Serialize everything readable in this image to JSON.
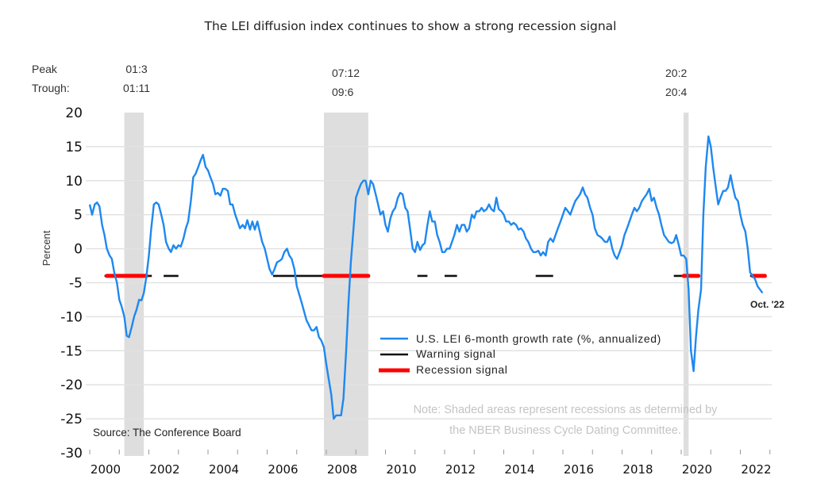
{
  "chart_data": {
    "type": "line",
    "title": "The LEI diffusion index continues to show a strong recession signal",
    "xlabel": "",
    "ylabel": "Percent",
    "ylim": [
      -30,
      20
    ],
    "yticks": [
      20,
      15,
      10,
      5,
      0,
      -5,
      -10,
      -15,
      -20,
      -25,
      -30
    ],
    "xlim": [
      2000,
      2023
    ],
    "xticks": [
      "2000",
      "2002",
      "2004",
      "2006",
      "2008",
      "2010",
      "2012",
      "2014",
      "2016",
      "2018",
      "2020",
      "2022"
    ],
    "grid": true,
    "legend_placement": "center-bottom",
    "peak_label": "Peak",
    "trough_label": "Trough:",
    "recessions": [
      {
        "peak": "01:3",
        "trough": "01:11",
        "start": 2001.17,
        "end": 2001.83
      },
      {
        "peak": "07:12",
        "trough": "09:6",
        "start": 2007.92,
        "end": 2009.42
      },
      {
        "peak": "20:2",
        "trough": "20:4",
        "start": 2020.08,
        "end": 2020.25
      }
    ],
    "series": [
      {
        "name": "U.S. LEI 6-month growth rate (%, annualized)",
        "color": "#1e88f0",
        "points": [
          [
            2000.0,
            6.5
          ],
          [
            2000.08,
            5.0
          ],
          [
            2000.17,
            6.5
          ],
          [
            2000.25,
            6.8
          ],
          [
            2000.33,
            6.2
          ],
          [
            2000.42,
            3.5
          ],
          [
            2000.5,
            2.0
          ],
          [
            2000.58,
            0.0
          ],
          [
            2000.67,
            -1.0
          ],
          [
            2000.75,
            -1.5
          ],
          [
            2000.83,
            -3.5
          ],
          [
            2000.92,
            -5.0
          ],
          [
            2001.0,
            -7.5
          ],
          [
            2001.08,
            -8.5
          ],
          [
            2001.17,
            -10.0
          ],
          [
            2001.25,
            -12.8
          ],
          [
            2001.33,
            -13.0
          ],
          [
            2001.42,
            -11.5
          ],
          [
            2001.5,
            -10.0
          ],
          [
            2001.58,
            -9.0
          ],
          [
            2001.67,
            -7.5
          ],
          [
            2001.75,
            -7.6
          ],
          [
            2001.83,
            -6.5
          ],
          [
            2001.92,
            -4.0
          ],
          [
            2002.0,
            -1.0
          ],
          [
            2002.08,
            3.0
          ],
          [
            2002.17,
            6.5
          ],
          [
            2002.25,
            6.8
          ],
          [
            2002.33,
            6.5
          ],
          [
            2002.42,
            5.0
          ],
          [
            2002.5,
            3.5
          ],
          [
            2002.58,
            1.0
          ],
          [
            2002.67,
            0.0
          ],
          [
            2002.75,
            -0.5
          ],
          [
            2002.83,
            0.5
          ],
          [
            2002.92,
            0.0
          ],
          [
            2003.0,
            0.5
          ],
          [
            2003.08,
            0.3
          ],
          [
            2003.17,
            1.5
          ],
          [
            2003.25,
            3.0
          ],
          [
            2003.33,
            4.0
          ],
          [
            2003.42,
            7.0
          ],
          [
            2003.5,
            10.5
          ],
          [
            2003.58,
            11.0
          ],
          [
            2003.67,
            12.0
          ],
          [
            2003.75,
            13.0
          ],
          [
            2003.83,
            13.8
          ],
          [
            2003.92,
            12.0
          ],
          [
            2004.0,
            11.5
          ],
          [
            2004.08,
            10.5
          ],
          [
            2004.17,
            9.5
          ],
          [
            2004.25,
            8.0
          ],
          [
            2004.33,
            8.2
          ],
          [
            2004.42,
            7.8
          ],
          [
            2004.5,
            8.8
          ],
          [
            2004.58,
            8.8
          ],
          [
            2004.67,
            8.5
          ],
          [
            2004.75,
            6.5
          ],
          [
            2004.83,
            6.5
          ],
          [
            2004.92,
            5.0
          ],
          [
            2005.0,
            4.0
          ],
          [
            2005.08,
            3.0
          ],
          [
            2005.17,
            3.5
          ],
          [
            2005.25,
            3.0
          ],
          [
            2005.33,
            4.2
          ],
          [
            2005.42,
            2.8
          ],
          [
            2005.5,
            4.0
          ],
          [
            2005.58,
            2.8
          ],
          [
            2005.67,
            4.0
          ],
          [
            2005.75,
            2.5
          ],
          [
            2005.83,
            1.0
          ],
          [
            2005.92,
            0.0
          ],
          [
            2006.0,
            -1.5
          ],
          [
            2006.08,
            -3.0
          ],
          [
            2006.17,
            -3.8
          ],
          [
            2006.25,
            -3.0
          ],
          [
            2006.33,
            -2.0
          ],
          [
            2006.42,
            -1.8
          ],
          [
            2006.5,
            -1.5
          ],
          [
            2006.58,
            -0.5
          ],
          [
            2006.67,
            0.0
          ],
          [
            2006.75,
            -1.0
          ],
          [
            2006.83,
            -1.5
          ],
          [
            2006.92,
            -3.0
          ],
          [
            2007.0,
            -5.5
          ],
          [
            2007.17,
            -8.0
          ],
          [
            2007.33,
            -10.5
          ],
          [
            2007.5,
            -12.0
          ],
          [
            2007.58,
            -12.0
          ],
          [
            2007.67,
            -11.5
          ],
          [
            2007.75,
            -13.0
          ],
          [
            2007.83,
            -13.5
          ],
          [
            2007.92,
            -14.5
          ],
          [
            2008.0,
            -17.0
          ],
          [
            2008.17,
            -21.5
          ],
          [
            2008.25,
            -25.0
          ],
          [
            2008.33,
            -24.5
          ],
          [
            2008.5,
            -24.5
          ],
          [
            2008.58,
            -22.0
          ],
          [
            2008.67,
            -15.0
          ],
          [
            2008.75,
            -8.0
          ],
          [
            2008.83,
            -2.0
          ],
          [
            2008.92,
            3.0
          ],
          [
            2009.0,
            7.5
          ],
          [
            2009.08,
            8.5
          ],
          [
            2009.17,
            9.5
          ],
          [
            2009.25,
            10.0
          ],
          [
            2009.33,
            10.0
          ],
          [
            2009.42,
            8.0
          ],
          [
            2009.5,
            10.0
          ],
          [
            2009.58,
            9.5
          ],
          [
            2009.67,
            8.0
          ],
          [
            2009.75,
            6.5
          ],
          [
            2009.83,
            5.0
          ],
          [
            2009.92,
            5.5
          ],
          [
            2010.0,
            3.5
          ],
          [
            2010.08,
            2.5
          ],
          [
            2010.17,
            4.5
          ],
          [
            2010.25,
            5.5
          ],
          [
            2010.33,
            6.0
          ],
          [
            2010.42,
            7.5
          ],
          [
            2010.5,
            8.2
          ],
          [
            2010.58,
            8.0
          ],
          [
            2010.67,
            6.0
          ],
          [
            2010.75,
            5.5
          ],
          [
            2010.83,
            3.0
          ],
          [
            2010.92,
            0.0
          ],
          [
            2011.0,
            -0.5
          ],
          [
            2011.08,
            1.0
          ],
          [
            2011.17,
            -0.2
          ],
          [
            2011.25,
            0.5
          ],
          [
            2011.33,
            0.8
          ],
          [
            2011.42,
            3.5
          ],
          [
            2011.5,
            5.5
          ],
          [
            2011.58,
            4.0
          ],
          [
            2011.67,
            4.0
          ],
          [
            2011.75,
            2.0
          ],
          [
            2011.83,
            1.0
          ],
          [
            2011.92,
            -0.5
          ],
          [
            2012.0,
            -0.5
          ],
          [
            2012.08,
            0.0
          ],
          [
            2012.17,
            0.0
          ],
          [
            2012.25,
            1.0
          ],
          [
            2012.33,
            2.0
          ],
          [
            2012.42,
            3.5
          ],
          [
            2012.5,
            2.5
          ],
          [
            2012.58,
            3.5
          ],
          [
            2012.67,
            3.5
          ],
          [
            2012.75,
            2.5
          ],
          [
            2012.83,
            3.0
          ],
          [
            2012.92,
            5.0
          ],
          [
            2013.0,
            4.5
          ],
          [
            2013.08,
            5.5
          ],
          [
            2013.17,
            5.5
          ],
          [
            2013.25,
            6.0
          ],
          [
            2013.33,
            5.5
          ],
          [
            2013.42,
            5.8
          ],
          [
            2013.5,
            6.5
          ],
          [
            2013.58,
            5.8
          ],
          [
            2013.67,
            5.5
          ],
          [
            2013.75,
            7.5
          ],
          [
            2013.83,
            5.8
          ],
          [
            2013.92,
            5.5
          ],
          [
            2014.0,
            5.0
          ],
          [
            2014.08,
            4.0
          ],
          [
            2014.17,
            4.0
          ],
          [
            2014.25,
            3.5
          ],
          [
            2014.33,
            3.8
          ],
          [
            2014.42,
            3.5
          ],
          [
            2014.5,
            2.8
          ],
          [
            2014.58,
            3.0
          ],
          [
            2014.67,
            2.5
          ],
          [
            2014.75,
            1.5
          ],
          [
            2014.83,
            1.0
          ],
          [
            2014.92,
            0.0
          ],
          [
            2015.0,
            -0.5
          ],
          [
            2015.08,
            -0.5
          ],
          [
            2015.17,
            -0.3
          ],
          [
            2015.25,
            -1.0
          ],
          [
            2015.33,
            -0.5
          ],
          [
            2015.42,
            -1.0
          ],
          [
            2015.5,
            1.0
          ],
          [
            2015.58,
            1.5
          ],
          [
            2015.67,
            1.0
          ],
          [
            2015.75,
            2.0
          ],
          [
            2015.83,
            3.0
          ],
          [
            2015.92,
            4.0
          ],
          [
            2016.0,
            5.0
          ],
          [
            2016.08,
            6.0
          ],
          [
            2016.17,
            5.5
          ],
          [
            2016.25,
            5.0
          ],
          [
            2016.33,
            6.0
          ],
          [
            2016.42,
            7.0
          ],
          [
            2016.5,
            7.5
          ],
          [
            2016.58,
            8.0
          ],
          [
            2016.67,
            9.0
          ],
          [
            2016.75,
            8.0
          ],
          [
            2016.83,
            7.5
          ],
          [
            2016.92,
            6.0
          ],
          [
            2017.0,
            5.0
          ],
          [
            2017.08,
            3.0
          ],
          [
            2017.17,
            2.0
          ],
          [
            2017.25,
            1.8
          ],
          [
            2017.33,
            1.5
          ],
          [
            2017.42,
            1.0
          ],
          [
            2017.5,
            1.0
          ],
          [
            2017.58,
            1.8
          ],
          [
            2017.67,
            0.0
          ],
          [
            2017.75,
            -1.0
          ],
          [
            2017.83,
            -1.5
          ],
          [
            2017.92,
            -0.5
          ],
          [
            2018.0,
            0.5
          ],
          [
            2018.08,
            2.0
          ],
          [
            2018.17,
            3.0
          ],
          [
            2018.25,
            4.0
          ],
          [
            2018.33,
            5.0
          ],
          [
            2018.42,
            6.0
          ],
          [
            2018.5,
            5.5
          ],
          [
            2018.58,
            6.0
          ],
          [
            2018.67,
            7.0
          ],
          [
            2018.75,
            7.5
          ],
          [
            2018.83,
            8.0
          ],
          [
            2018.92,
            8.8
          ],
          [
            2019.0,
            7.0
          ],
          [
            2019.08,
            7.5
          ],
          [
            2019.17,
            6.0
          ],
          [
            2019.25,
            5.0
          ],
          [
            2019.33,
            3.5
          ],
          [
            2019.42,
            2.0
          ],
          [
            2019.5,
            1.5
          ],
          [
            2019.58,
            1.0
          ],
          [
            2019.67,
            0.8
          ],
          [
            2019.75,
            1.0
          ],
          [
            2019.83,
            2.0
          ],
          [
            2019.92,
            0.5
          ],
          [
            2020.0,
            -1.0
          ],
          [
            2020.08,
            -1.0
          ],
          [
            2020.17,
            -1.5
          ],
          [
            2020.25,
            -6.0
          ],
          [
            2020.33,
            -15.0
          ],
          [
            2020.42,
            -18.0
          ],
          [
            2020.5,
            -13.0
          ],
          [
            2020.58,
            -9.0
          ],
          [
            2020.67,
            -6.0
          ],
          [
            2020.75,
            5.0
          ],
          [
            2020.83,
            12.0
          ],
          [
            2020.92,
            16.5
          ],
          [
            2021.0,
            15.0
          ],
          [
            2021.08,
            12.0
          ],
          [
            2021.17,
            9.0
          ],
          [
            2021.25,
            6.5
          ],
          [
            2021.33,
            7.5
          ],
          [
            2021.42,
            8.5
          ],
          [
            2021.5,
            8.5
          ],
          [
            2021.58,
            9.0
          ],
          [
            2021.67,
            10.8
          ],
          [
            2021.75,
            9.0
          ],
          [
            2021.83,
            7.5
          ],
          [
            2021.92,
            7.0
          ],
          [
            2022.0,
            5.0
          ],
          [
            2022.08,
            3.5
          ],
          [
            2022.17,
            2.5
          ],
          [
            2022.25,
            0.0
          ],
          [
            2022.33,
            -3.5
          ],
          [
            2022.42,
            -4.0
          ],
          [
            2022.5,
            -4.5
          ],
          [
            2022.58,
            -5.5
          ],
          [
            2022.75,
            -6.5
          ]
        ]
      },
      {
        "name": "Warning signal",
        "color": "#111111",
        "level": -4,
        "periods": [
          [
            2000.5,
            2002.1
          ],
          [
            2002.5,
            2003.0
          ],
          [
            2006.2,
            2007.92
          ],
          [
            2011.08,
            2011.42
          ],
          [
            2012.0,
            2012.42
          ],
          [
            2015.08,
            2015.67
          ],
          [
            2019.75,
            2020.08
          ],
          [
            2022.33,
            2022.42
          ]
        ]
      },
      {
        "name": "Recession signal",
        "color": "#ff0000",
        "level": -4,
        "periods": [
          [
            2000.58,
            2001.92
          ],
          [
            2007.92,
            2009.42
          ],
          [
            2020.08,
            2020.58
          ],
          [
            2022.42,
            2022.83
          ]
        ]
      }
    ],
    "end_label": "Oct. '22",
    "note": [
      "Note: Shaded areas represent recessions as determined by",
      "the NBER Business Cycle Dating Committee."
    ],
    "source": "Source: The Conference Board"
  }
}
